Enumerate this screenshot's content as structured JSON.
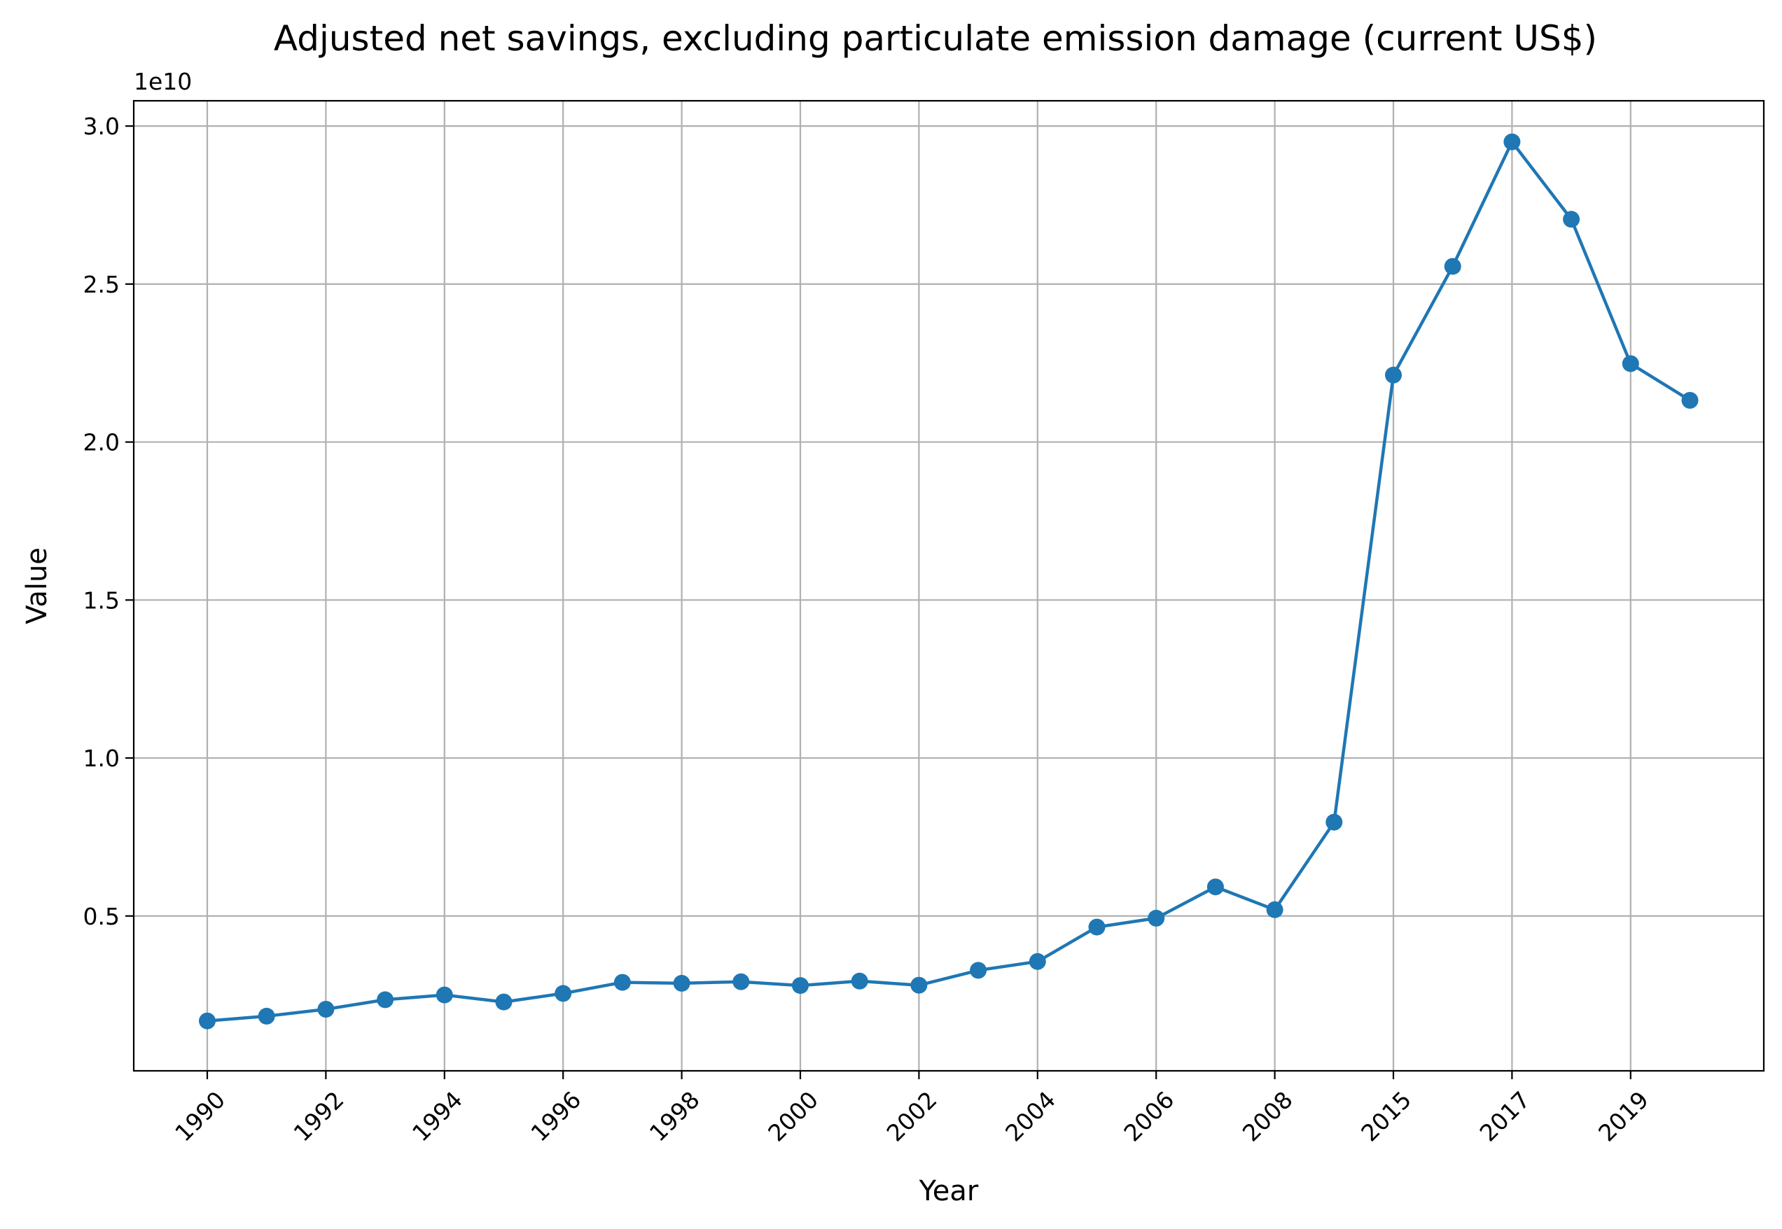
{
  "chart_data": {
    "type": "line",
    "title": "Adjusted net savings, excluding particulate emission damage (current US$)",
    "xlabel": "Year",
    "ylabel": "Value",
    "y_offset_label": "1e10",
    "grid": true,
    "colors": {
      "series": "#1f77b4"
    },
    "x": [
      "1990",
      "1991",
      "1992",
      "1993",
      "1994",
      "1995",
      "1996",
      "1997",
      "1998",
      "1999",
      "2000",
      "2001",
      "2002",
      "2003",
      "2004",
      "2005",
      "2006",
      "2007",
      "2008",
      "2009",
      "2015",
      "2016",
      "2017",
      "2018",
      "2019",
      "2020"
    ],
    "x_tick_labels": [
      "1990",
      "1992",
      "1994",
      "1996",
      "1998",
      "2000",
      "2002",
      "2004",
      "2006",
      "2008",
      "2015",
      "2017",
      "2019"
    ],
    "y_ticks": [
      "0.5",
      "1.0",
      "1.5",
      "2.0",
      "2.5",
      "3.0"
    ],
    "ylim": [
      100000000.0,
      30800000000.0
    ],
    "series": [
      {
        "values": [
          1680000000.0,
          1830000000.0,
          2050000000.0,
          2350000000.0,
          2500000000.0,
          2280000000.0,
          2550000000.0,
          2900000000.0,
          2870000000.0,
          2920000000.0,
          2800000000.0,
          2940000000.0,
          2810000000.0,
          3280000000.0,
          3560000000.0,
          4650000000.0,
          4930000000.0,
          5920000000.0,
          5200000000.0,
          7970000000.0,
          22120000000.0,
          25560000000.0,
          29500000000.0,
          27050000000.0,
          22480000000.0,
          21320000000.0
        ]
      }
    ]
  }
}
